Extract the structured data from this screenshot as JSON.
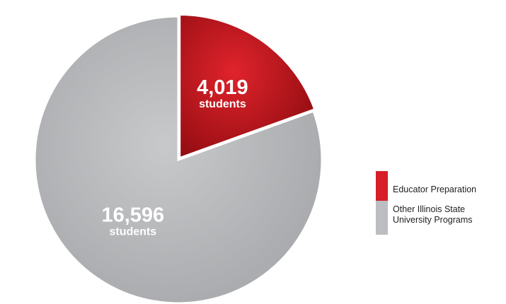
{
  "chart_data": {
    "type": "pie",
    "title": "",
    "slices": [
      {
        "label": "Educator Preparation",
        "value": 4019,
        "value_text": "4,019",
        "unit_text": "students",
        "color_light": "#e0232c",
        "color_dark": "#8c0b0f"
      },
      {
        "label": "Other Illinois State University Programs",
        "value": 16596,
        "value_text": "16,596",
        "unit_text": "students",
        "color_light": "#c8c9cb",
        "color_dark": "#a2a4a7"
      }
    ],
    "start_angle_deg": 0,
    "direction": "clockwise",
    "legend_placement": "right"
  },
  "legend": {
    "items": [
      {
        "label": "Educator Preparation",
        "color": "#d61f28"
      },
      {
        "label": "Other Illinois State University Programs",
        "color": "#bcbdc0"
      }
    ]
  }
}
